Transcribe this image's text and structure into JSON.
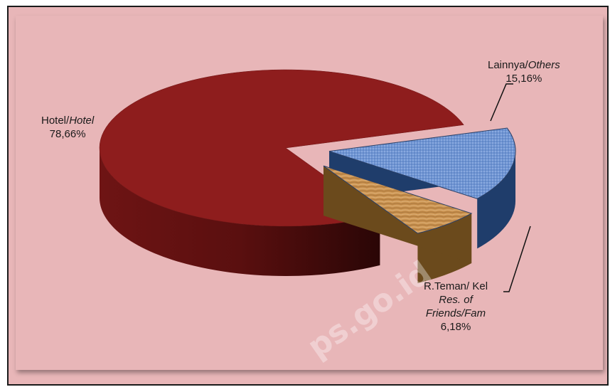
{
  "chart_data": {
    "type": "pie",
    "style": "3d-exploded",
    "slices": [
      {
        "label_main": "Hotel/",
        "label_italic": "Hotel",
        "value": 78.66,
        "value_label": "78,66%",
        "color": "#8e1d1d"
      },
      {
        "label_main": "Lainnya/",
        "label_italic": "Others",
        "value": 15.16,
        "value_label": "15,16%",
        "color": "#6f95d3"
      },
      {
        "label_main": "R.Teman/ Kel",
        "label_italic_1": "Res. of",
        "label_italic_2": "Friends/Fam",
        "value": 6.18,
        "value_label": "6,18%",
        "color": "#c99250"
      }
    ],
    "legend": "none",
    "labels_placement": "outside-with-leader-lines"
  },
  "watermark": "ps.go.id"
}
